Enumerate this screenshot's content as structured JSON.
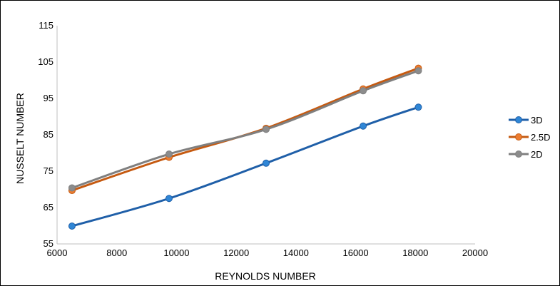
{
  "chart_data": {
    "type": "line",
    "title": "",
    "xlabel": "REYNOLDS NUMBER",
    "ylabel": "NUSSELT NUMBER",
    "xlim": [
      6000,
      20000
    ],
    "ylim": [
      55,
      115
    ],
    "xticks": [
      6000,
      8000,
      10000,
      12000,
      14000,
      16000,
      18000,
      20000
    ],
    "yticks": [
      55,
      65,
      75,
      85,
      95,
      105,
      115
    ],
    "grid": false,
    "legend_position": "right",
    "series": [
      {
        "name": "3D",
        "color": "#1f5fa8",
        "marker_color": "#2f86d6",
        "x": [
          6500,
          9750,
          13000,
          16250,
          18100
        ],
        "y": [
          59.9,
          67.5,
          77.2,
          87.4,
          92.6
        ]
      },
      {
        "name": "2.5D",
        "color": "#c55a11",
        "marker_color": "#ed7d31",
        "x": [
          6500,
          9750,
          13000,
          16250,
          18100
        ],
        "y": [
          69.7,
          78.8,
          86.8,
          97.6,
          103.3
        ]
      },
      {
        "name": "2D",
        "color": "#7f7f7f",
        "marker_color": "#8c8c8c",
        "x": [
          6500,
          9750,
          13000,
          16250,
          18100
        ],
        "y": [
          70.4,
          79.7,
          86.5,
          97.1,
          102.6
        ]
      }
    ]
  }
}
